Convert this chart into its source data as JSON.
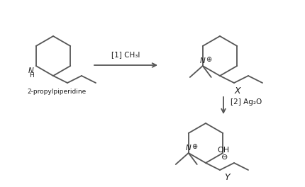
{
  "bg_color": "#ffffff",
  "line_color": "#555555",
  "text_color": "#1a1a1a",
  "figsize": [
    4.3,
    2.64
  ],
  "dpi": 100,
  "label_2propyl": "2-propylpiperidine",
  "label_X": "X",
  "label_Y": "Y",
  "reagent1": "[1] CH₃I",
  "reagent2": "[2] Ag₂O",
  "NH_label": "H"
}
